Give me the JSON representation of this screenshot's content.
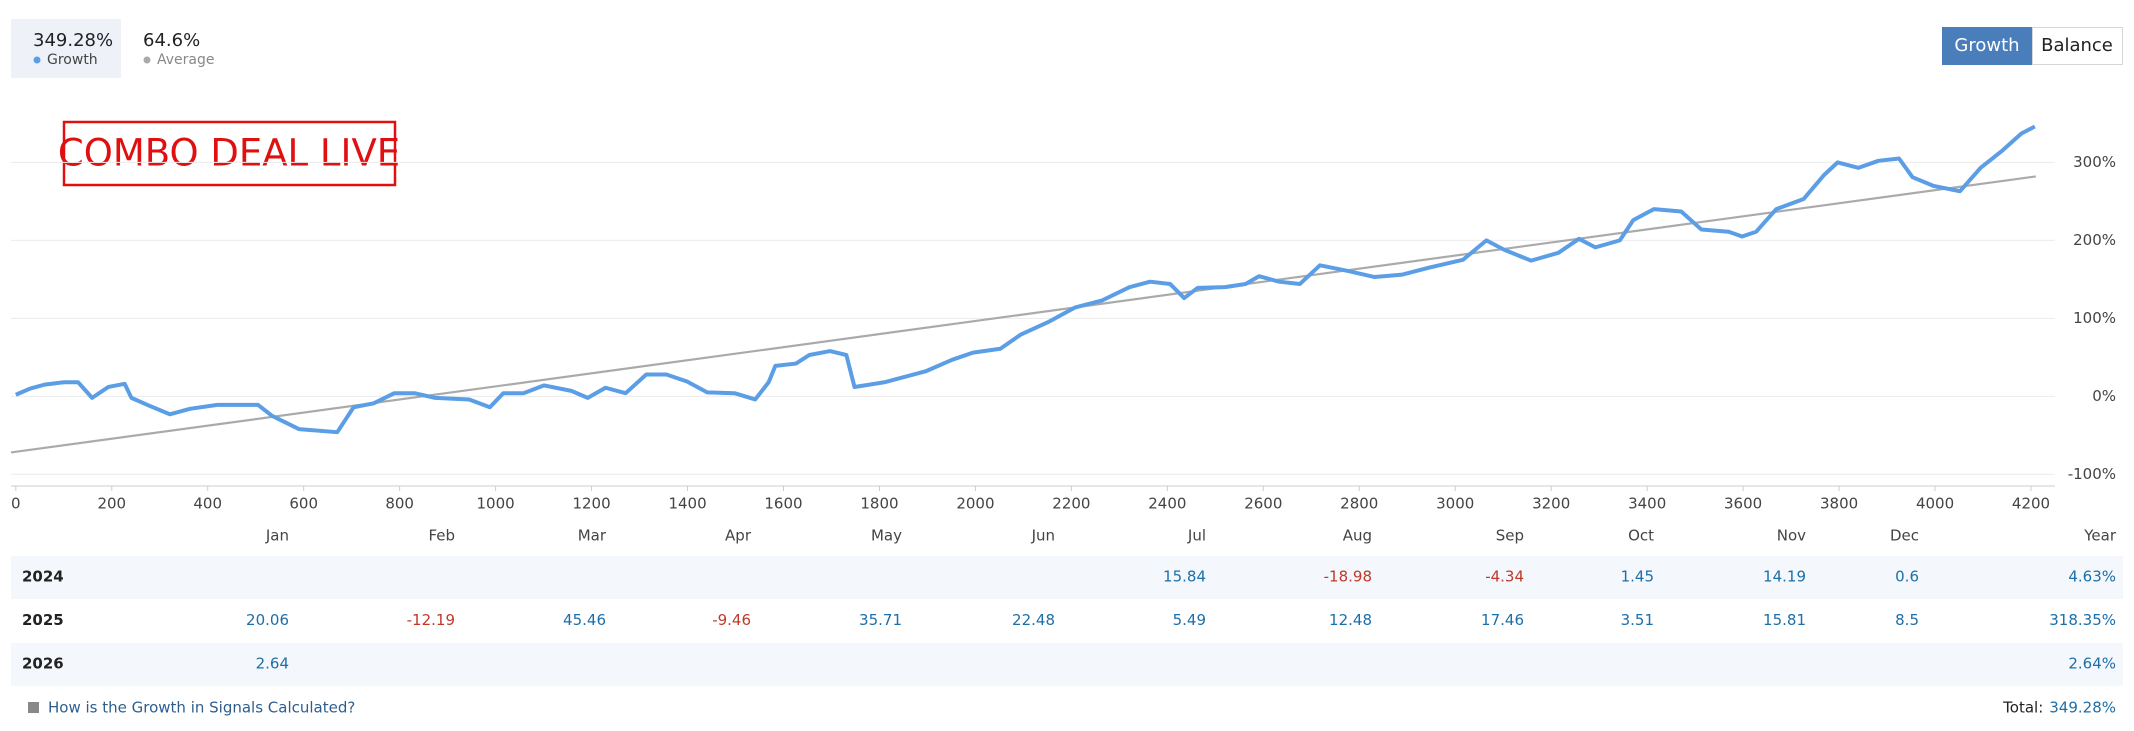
{
  "header": {
    "growth_value": "349.28%",
    "growth_label": "Growth",
    "average_value": "64.6%",
    "average_label": "Average"
  },
  "buttons": [
    "Growth",
    "Balance"
  ],
  "chart_data": {
    "type": "line",
    "annotation": "COMBO DEAL LIVE",
    "xlim": [
      -10,
      4250
    ],
    "ylim": [
      -115,
      380
    ],
    "xticks": [
      0,
      200,
      400,
      600,
      800,
      1000,
      1200,
      1400,
      1600,
      1800,
      2000,
      2200,
      2400,
      2600,
      2800,
      3000,
      3200,
      3400,
      3600,
      3800,
      4000,
      4200
    ],
    "yticks": [
      {
        "value": -100,
        "label": "-100%"
      },
      {
        "value": 0,
        "label": "0%"
      },
      {
        "value": 100,
        "label": "100%"
      },
      {
        "value": 200,
        "label": "200%"
      },
      {
        "value": 300,
        "label": "300%"
      }
    ],
    "grid": true,
    "series": [
      {
        "name": "Growth",
        "color": "#5b9ee6",
        "x": [
          0,
          30,
          60,
          100,
          130,
          159,
          193,
          227,
          241,
          278,
          321,
          363,
          420,
          505,
          534,
          590,
          670,
          704,
          746,
          789,
          831,
          874,
          945,
          988,
          1016,
          1058,
          1101,
          1158,
          1192,
          1229,
          1271,
          1314,
          1356,
          1399,
          1441,
          1498,
          1541,
          1569,
          1583,
          1626,
          1654,
          1697,
          1731,
          1748,
          1810,
          1853,
          1896,
          1952,
          1995,
          2052,
          2094,
          2151,
          2208,
          2264,
          2321,
          2364,
          2406,
          2435,
          2463,
          2520,
          2563,
          2591,
          2633,
          2676,
          2718,
          2775,
          2832,
          2889,
          2945,
          3016,
          3065,
          3102,
          3158,
          3215,
          3258,
          3292,
          3343,
          3371,
          3414,
          3471,
          3513,
          3570,
          3598,
          3627,
          3669,
          3726,
          3769,
          3797,
          3840,
          3882,
          3925,
          3953,
          3996,
          4052,
          4095,
          4138,
          4180,
          4208
        ],
        "values": [
          2,
          10,
          15,
          18,
          18,
          -2,
          12,
          16,
          -2,
          -12,
          -23,
          -16,
          -11,
          -11,
          -25,
          -42,
          -46,
          -14,
          -9,
          4,
          4,
          -2,
          -4,
          -14,
          4,
          4,
          14,
          7,
          -2,
          11,
          4,
          28,
          28,
          19,
          5,
          4,
          -4,
          18,
          39,
          42,
          53,
          58,
          53,
          12,
          18,
          25,
          32,
          47,
          56,
          61,
          79,
          95,
          114,
          123,
          140,
          147,
          144,
          126,
          139,
          140,
          144,
          154,
          147,
          144,
          168,
          161,
          153,
          156,
          165,
          175,
          200,
          188,
          174,
          184,
          202,
          191,
          200,
          226,
          240,
          237,
          214,
          211,
          205,
          211,
          240,
          253,
          284,
          300,
          293,
          302,
          305,
          281,
          270,
          263,
          293,
          314,
          337,
          346
        ]
      },
      {
        "name": "Average",
        "color": "#aaaaaa",
        "x": [
          -10,
          4210
        ],
        "values": [
          -72,
          282
        ]
      }
    ]
  },
  "table": {
    "header": [
      "Jan",
      "Feb",
      "Mar",
      "Apr",
      "May",
      "Jun",
      "Jul",
      "Aug",
      "Sep",
      "Oct",
      "Nov",
      "Dec",
      "Year"
    ],
    "rows": [
      [
        "2024",
        null,
        null,
        null,
        null,
        null,
        null,
        "15.84",
        "-18.98",
        "-4.34",
        "1.45",
        "14.19",
        "0.6",
        "4.63%"
      ],
      [
        "2025",
        "20.06",
        "-12.19",
        "45.46",
        "-9.46",
        "35.71",
        "22.48",
        "5.49",
        "12.48",
        "17.46",
        "3.51",
        "15.81",
        "8.5",
        "318.35%"
      ],
      [
        "2026",
        "2.64",
        null,
        null,
        null,
        null,
        null,
        null,
        null,
        null,
        null,
        null,
        null,
        "2.64%"
      ]
    ]
  },
  "footer": {
    "link": "How is the Growth in Signals Calculated?",
    "total_label": "Total:",
    "total_value": "349.28%"
  }
}
